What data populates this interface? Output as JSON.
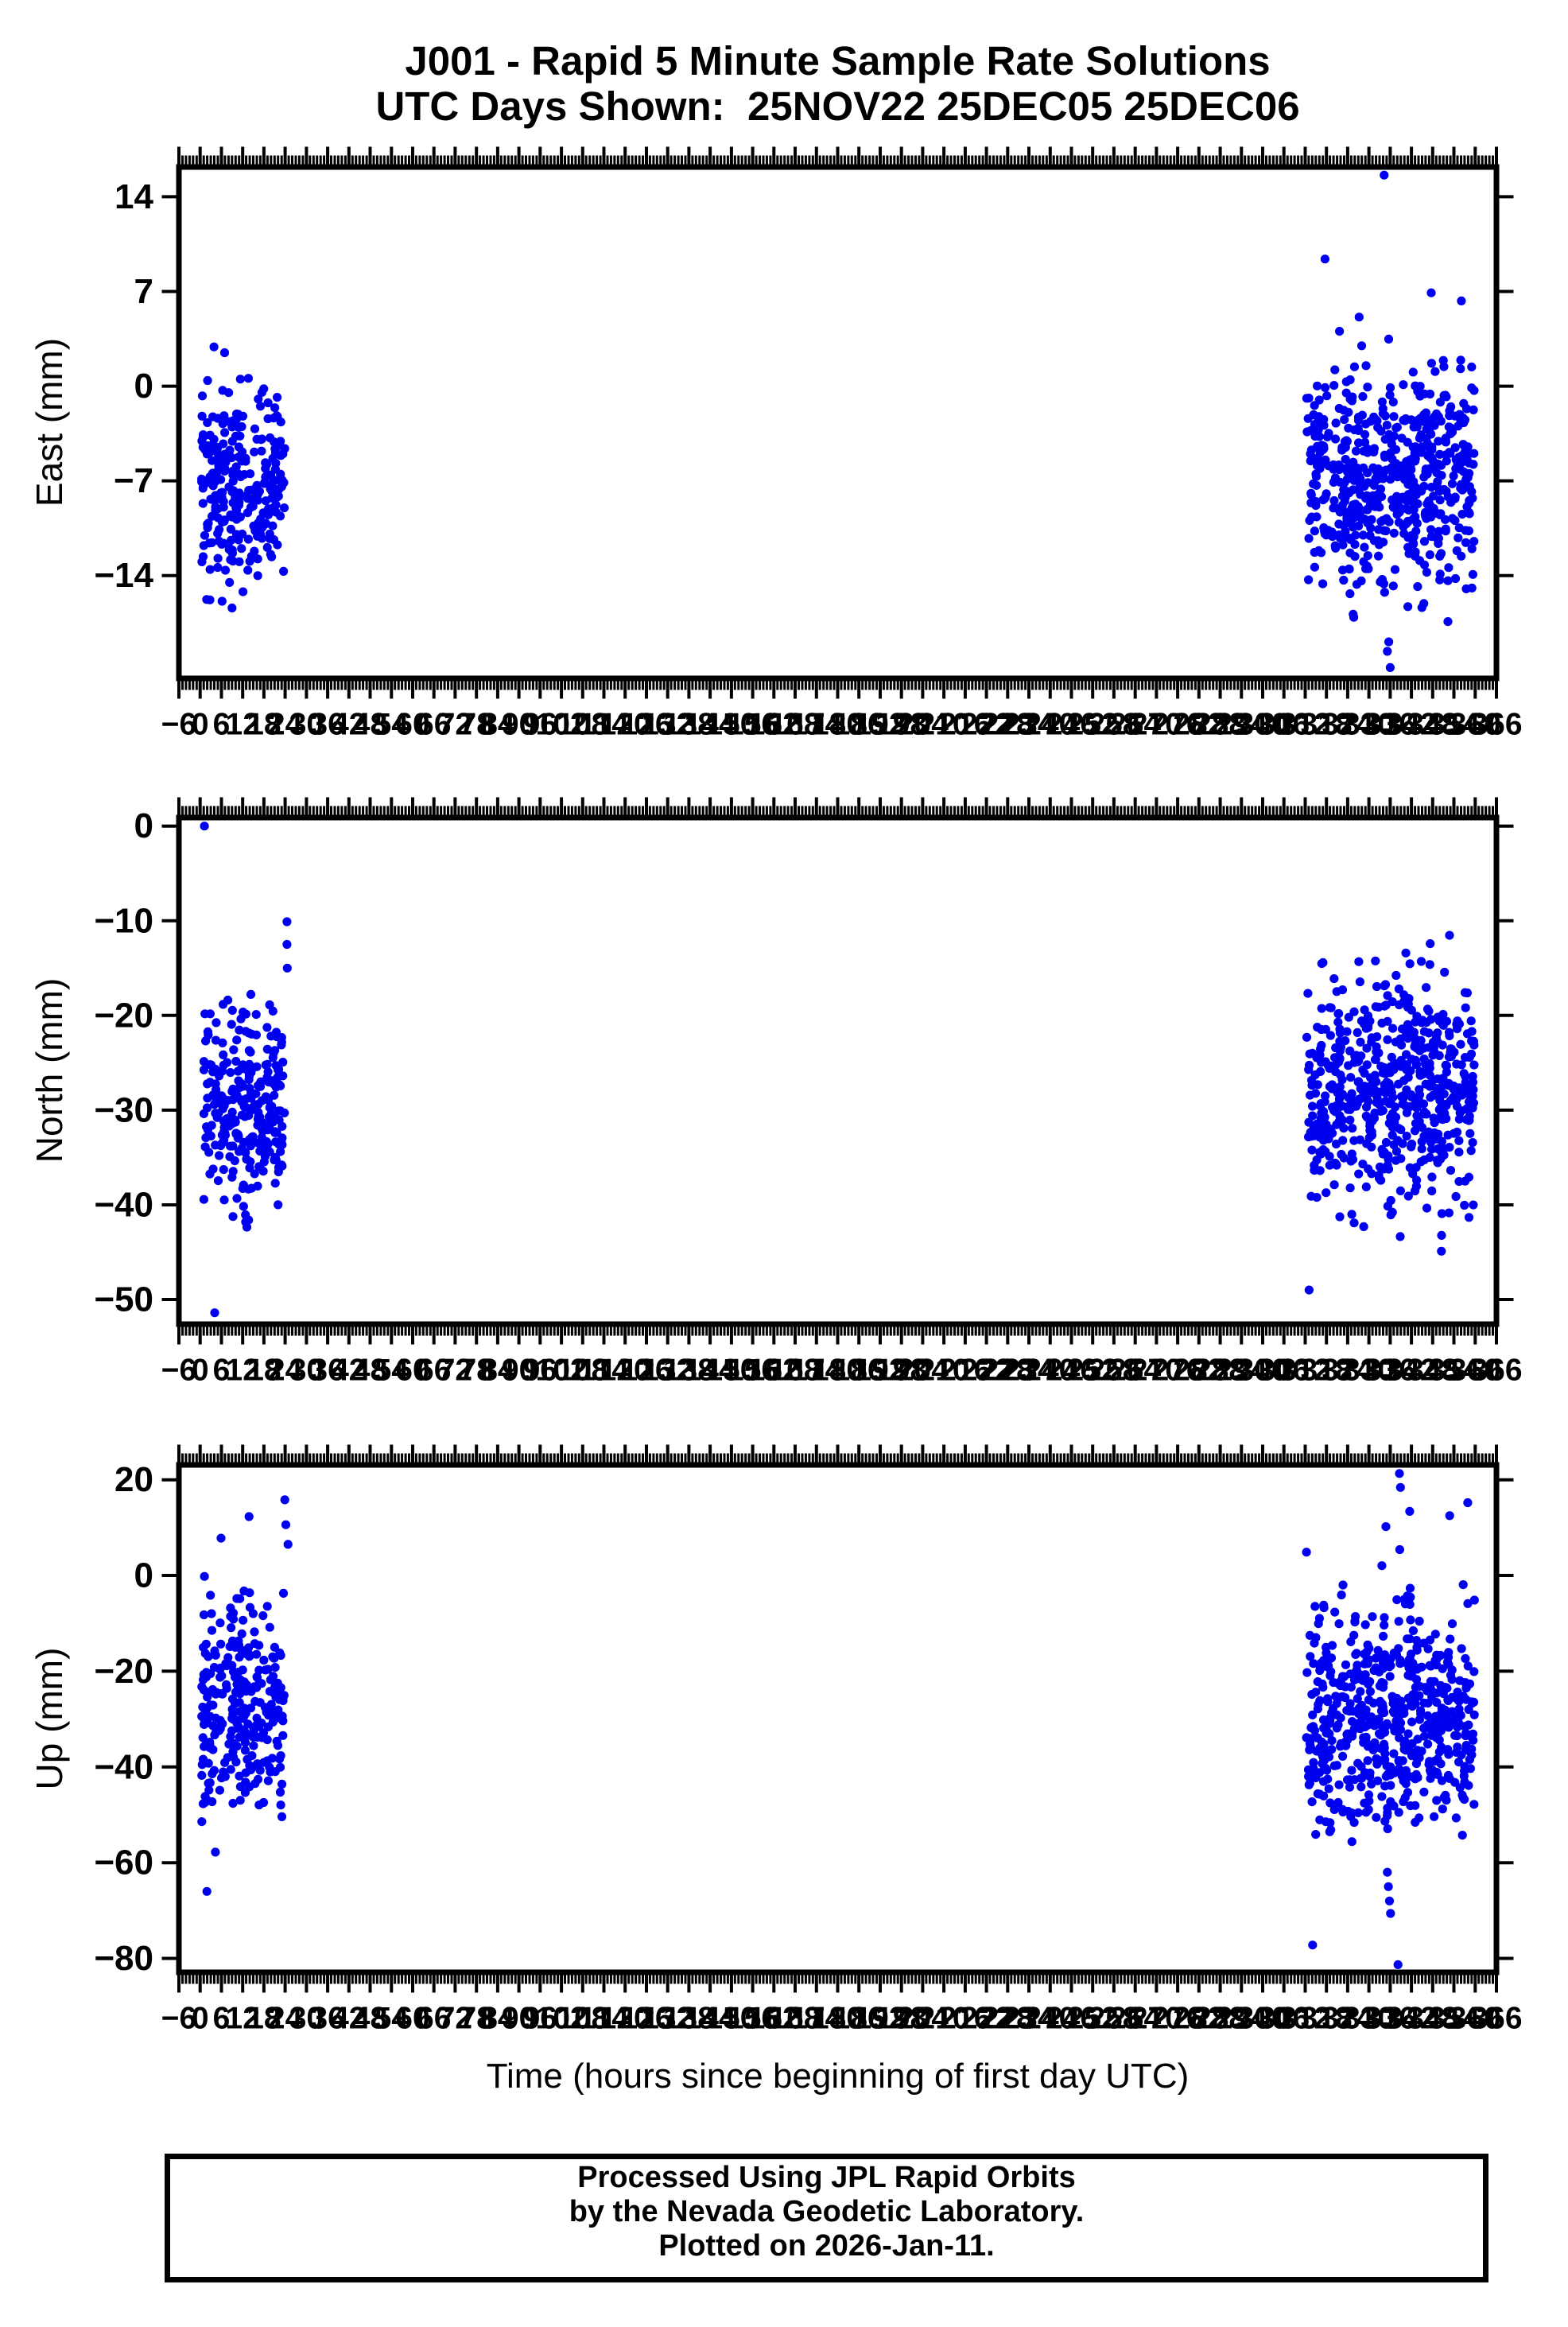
{
  "title": {
    "line1": "J001 - Rapid 5 Minute Sample Rate Solutions",
    "line2": "UTC Days Shown:  25NOV22 25DEC05 25DEC06"
  },
  "x_axis": {
    "title": "Time (hours since beginning of first day UTC)",
    "min": -6,
    "max": 366,
    "minor_tick": 1,
    "major_tick": 6,
    "label_step": 6
  },
  "footer": {
    "line1": "Processed Using JPL Rapid Orbits",
    "line2": "by the Nevada Geodetic Laboratory.",
    "line3": "Plotted on 2026-Jan-11."
  },
  "colors": {
    "points": "#0000f0",
    "frame": "#000000",
    "text": "#000000",
    "background": "#ffffff"
  },
  "random_seed": 20261,
  "chart_data": [
    {
      "type": "scatter",
      "series_name": "East",
      "ylabel": "East (mm)",
      "ylim": [
        16.2,
        -21.6
      ],
      "yticks": [
        14,
        7,
        0,
        -7,
        -14
      ],
      "clusters": [
        {
          "x_range": [
            0.4,
            23.9
          ],
          "n": 270,
          "y_mean": -7.6,
          "y_std": 3.7,
          "y_min": -16.6,
          "y_max": 3.0
        },
        {
          "x_range": [
            312.3,
            359.8
          ],
          "n": 590,
          "y_mean": -7.0,
          "y_std": 4.1,
          "y_min": -18.6,
          "y_max": 5.6
        }
      ],
      "outliers": [
        [
          334.3,
          15.6
        ],
        [
          317.6,
          9.4
        ],
        [
          347.6,
          6.9
        ],
        [
          356.1,
          6.3
        ],
        [
          335.2,
          -19.6
        ],
        [
          336.0,
          -20.8
        ],
        [
          335.6,
          -18.9
        ],
        [
          352.3,
          -17.4
        ],
        [
          341.0,
          -16.3
        ],
        [
          3.9,
          2.9
        ],
        [
          6.2,
          -15.9
        ],
        [
          9.0,
          -16.4
        ],
        [
          12.1,
          -15.2
        ]
      ]
    },
    {
      "type": "scatter",
      "series_name": "North",
      "ylabel": "North (mm)",
      "ylim": [
        0.9,
        -52.6
      ],
      "yticks": [
        0,
        -10,
        -20,
        -30,
        -40,
        -50
      ],
      "clusters": [
        {
          "x_range": [
            0.4,
            23.9
          ],
          "n": 270,
          "y_mean": -30.0,
          "y_std": 5.6,
          "y_min": -46.6,
          "y_max": -17.2
        },
        {
          "x_range": [
            312.3,
            359.8
          ],
          "n": 590,
          "y_mean": -28.6,
          "y_std": 6.1,
          "y_min": -47.6,
          "y_max": -11.4
        }
      ],
      "outliers": [
        [
          1.2,
          0.0
        ],
        [
          4.1,
          -51.4
        ],
        [
          24.5,
          -10.1
        ],
        [
          24.5,
          -12.5
        ],
        [
          24.6,
          -15.0
        ],
        [
          313.1,
          -49.0
        ]
      ]
    },
    {
      "type": "scatter",
      "series_name": "Up",
      "ylabel": "Up (mm)",
      "ylim": [
        23.1,
        -82.9
      ],
      "yticks": [
        20,
        0,
        -20,
        -40,
        -60,
        -80
      ],
      "clusters": [
        {
          "x_range": [
            0.4,
            23.9
          ],
          "n": 270,
          "y_mean": -28.5,
          "y_std": 10.5,
          "y_min": -52.5,
          "y_max": 3.5
        },
        {
          "x_range": [
            312.3,
            359.8
          ],
          "n": 590,
          "y_mean": -30.0,
          "y_std": 11.5,
          "y_min": -55.0,
          "y_max": 14.0
        }
      ],
      "outliers": [
        [
          23.9,
          15.8
        ],
        [
          24.2,
          10.6
        ],
        [
          24.8,
          6.5
        ],
        [
          13.8,
          12.3
        ],
        [
          5.9,
          7.8
        ],
        [
          1.2,
          -0.2
        ],
        [
          1.9,
          -66.0
        ],
        [
          4.3,
          -57.8
        ],
        [
          325.2,
          -55.6
        ],
        [
          335.2,
          -62.0
        ],
        [
          335.5,
          -65.0
        ],
        [
          335.8,
          -68.0
        ],
        [
          336.1,
          -70.6
        ],
        [
          314.1,
          -77.2
        ],
        [
          338.2,
          -81.3
        ],
        [
          338.6,
          21.3
        ],
        [
          338.9,
          18.4
        ],
        [
          341.5,
          13.4
        ],
        [
          334.8,
          10.2
        ],
        [
          357.9,
          15.2
        ],
        [
          352.8,
          12.5
        ]
      ]
    }
  ]
}
